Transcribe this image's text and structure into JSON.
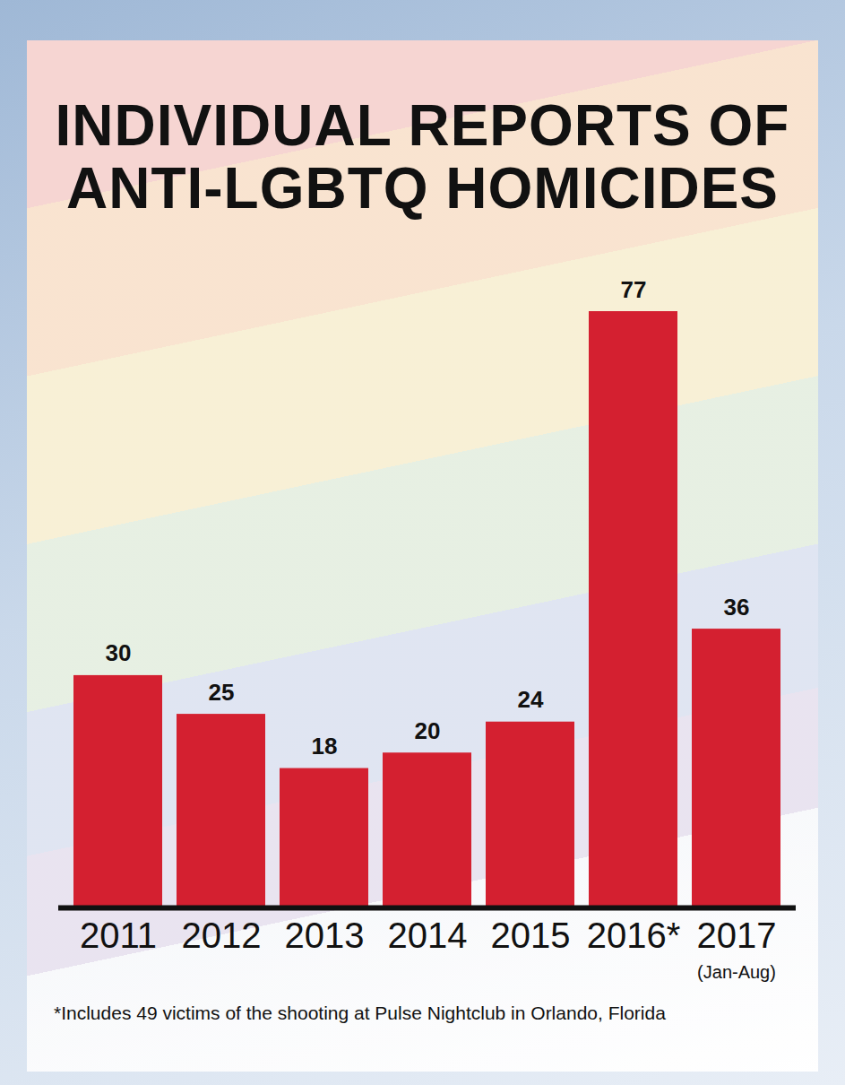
{
  "chart_data": {
    "type": "bar",
    "title": "INDIVIDUAL REPORTS OF ANTI-LGBTQ HOMICIDES",
    "categories": [
      "2011",
      "2012",
      "2013",
      "2014",
      "2015",
      "2016*",
      "2017"
    ],
    "values": [
      30,
      25,
      18,
      20,
      24,
      77,
      36
    ],
    "color": "#d42030",
    "ylim": [
      0,
      77
    ],
    "data_labels": true,
    "tick_labels": "x",
    "annotations": [
      {
        "category": "2017",
        "text": "(Jan-Aug)"
      }
    ],
    "caption": "*Includes 49 victims of the shooting at Pulse Nightclub in Orlando, Florida"
  }
}
